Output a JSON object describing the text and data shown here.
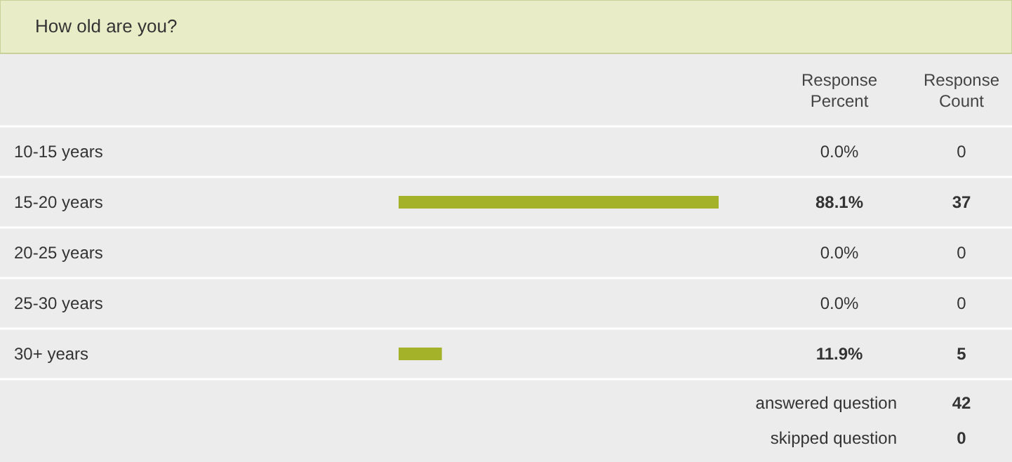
{
  "chart_data": {
    "type": "bar",
    "orientation": "horizontal",
    "title": "How old are you?",
    "categories": [
      "10-15 years",
      "15-20 years",
      "20-25 years",
      "25-30 years",
      "30+ years"
    ],
    "values": [
      0.0,
      88.1,
      0.0,
      0.0,
      11.9
    ],
    "value_labels": [
      "0.0%",
      "88.1%",
      "0.0%",
      "0.0%",
      "11.9%"
    ],
    "color": "#a3b228",
    "annotations": [
      "Response Percent",
      "Response Count",
      "0",
      "37",
      "0",
      "0",
      "5",
      "answered question",
      "42",
      "skipped question",
      "0"
    ]
  }
}
